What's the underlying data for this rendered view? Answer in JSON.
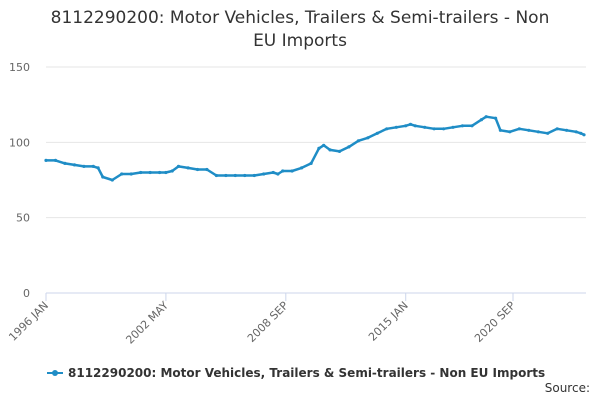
{
  "title_line1": "8112290200: Motor Vehicles, Trailers & Semi-trailers - Non",
  "title_line2": "EU Imports",
  "source_label": "Source:",
  "chart_data": {
    "type": "line",
    "title": "8112290200: Motor Vehicles, Trailers & Semi-trailers - Non EU Imports",
    "xlabel": "",
    "ylabel": "",
    "x_tick_labels": [
      "1996 JAN",
      "2002 MAY",
      "2008 SEP",
      "2015 JAN",
      "2020 SEP"
    ],
    "y_ticks": [
      0,
      50,
      100,
      150
    ],
    "ylim": [
      0,
      150
    ],
    "grid": true,
    "legend_position": "bottom",
    "series": [
      {
        "name": "8112290200: Motor Vehicles, Trailers & Semi-trailers - Non EU Imports",
        "color": "#1f8dc6",
        "points": [
          [
            "1996-01",
            88
          ],
          [
            "1996-07",
            88
          ],
          [
            "1997-01",
            86
          ],
          [
            "1997-07",
            85
          ],
          [
            "1998-01",
            84
          ],
          [
            "1998-07",
            84
          ],
          [
            "1998-10",
            83
          ],
          [
            "1999-01",
            77
          ],
          [
            "1999-07",
            75
          ],
          [
            "2000-01",
            79
          ],
          [
            "2000-07",
            79
          ],
          [
            "2001-01",
            80
          ],
          [
            "2001-07",
            80
          ],
          [
            "2002-01",
            80
          ],
          [
            "2002-05",
            80
          ],
          [
            "2002-09",
            81
          ],
          [
            "2003-01",
            84
          ],
          [
            "2003-07",
            83
          ],
          [
            "2004-01",
            82
          ],
          [
            "2004-07",
            82
          ],
          [
            "2005-01",
            78
          ],
          [
            "2005-07",
            78
          ],
          [
            "2006-01",
            78
          ],
          [
            "2006-07",
            78
          ],
          [
            "2007-01",
            78
          ],
          [
            "2007-07",
            79
          ],
          [
            "2008-01",
            80
          ],
          [
            "2008-04",
            79
          ],
          [
            "2008-07",
            81
          ],
          [
            "2009-01",
            81
          ],
          [
            "2009-07",
            83
          ],
          [
            "2010-01",
            86
          ],
          [
            "2010-06",
            96
          ],
          [
            "2010-09",
            98
          ],
          [
            "2011-01",
            95
          ],
          [
            "2011-07",
            94
          ],
          [
            "2012-01",
            97
          ],
          [
            "2012-07",
            101
          ],
          [
            "2013-01",
            103
          ],
          [
            "2013-07",
            106
          ],
          [
            "2014-01",
            109
          ],
          [
            "2014-07",
            110
          ],
          [
            "2015-01",
            111
          ],
          [
            "2015-04",
            112
          ],
          [
            "2015-07",
            111
          ],
          [
            "2016-01",
            110
          ],
          [
            "2016-07",
            109
          ],
          [
            "2017-01",
            109
          ],
          [
            "2017-07",
            110
          ],
          [
            "2018-01",
            111
          ],
          [
            "2018-07",
            111
          ],
          [
            "2019-01",
            115
          ],
          [
            "2019-04",
            117
          ],
          [
            "2019-10",
            116
          ],
          [
            "2020-01",
            108
          ],
          [
            "2020-07",
            107
          ],
          [
            "2021-01",
            109
          ],
          [
            "2021-07",
            108
          ],
          [
            "2022-01",
            107
          ],
          [
            "2022-07",
            106
          ],
          [
            "2023-01",
            109
          ],
          [
            "2023-07",
            108
          ],
          [
            "2024-01",
            107
          ],
          [
            "2024-04",
            106
          ],
          [
            "2024-06",
            105
          ]
        ]
      }
    ]
  }
}
